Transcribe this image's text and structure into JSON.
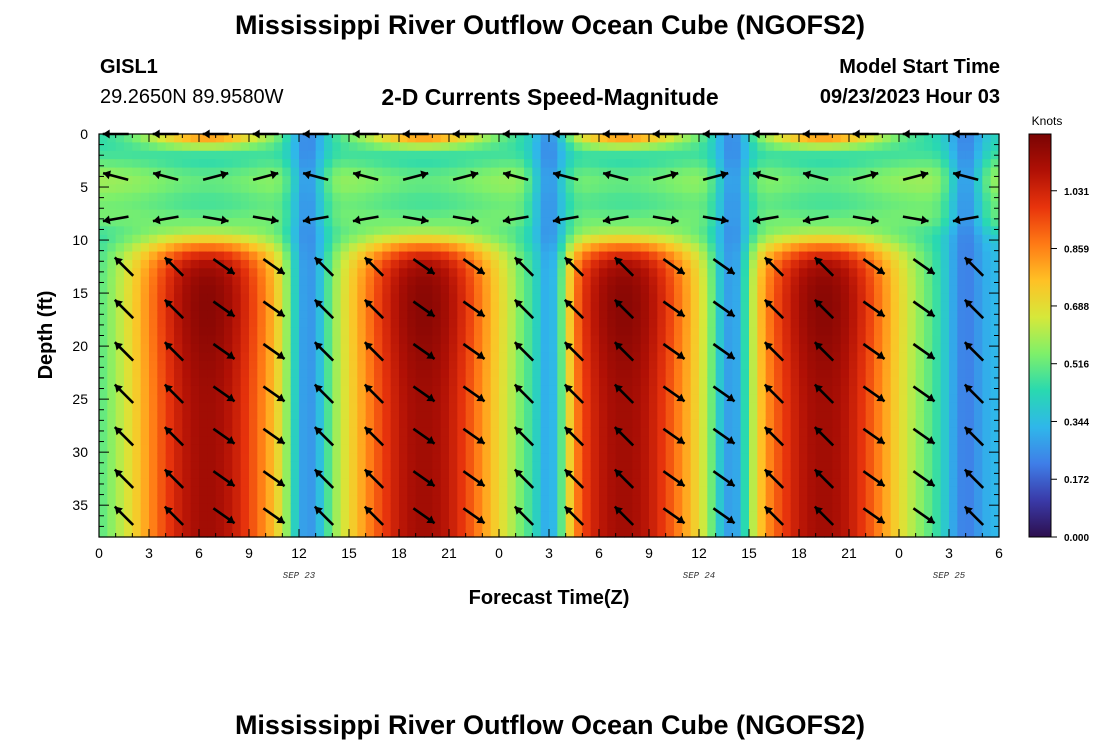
{
  "titles": {
    "main": "Mississippi River Outflow Ocean Cube (NGOFS2)",
    "bottom": "Mississippi River Outflow Ocean Cube (NGOFS2)",
    "station": "GISL1",
    "coords": "29.2650N  89.9580W",
    "subtitle": "2-D Currents Speed-Magnitude",
    "model_start_label": "Model Start Time",
    "model_start_value": "09/23/2023 Hour 03"
  },
  "chart_data": {
    "type": "heatmap",
    "title": "2-D Currents Speed-Magnitude",
    "xlabel": "Forecast Time(Z)",
    "ylabel": "Depth (ft)",
    "x_tick_labels": [
      "0",
      "3",
      "6",
      "9",
      "12",
      "15",
      "18",
      "21",
      "0",
      "3",
      "6",
      "9",
      "12",
      "15",
      "18",
      "21",
      "0",
      "3",
      "6"
    ],
    "day_labels": [
      "SEP 23",
      "SEP 24",
      "SEP 25"
    ],
    "y_ticks": [
      0,
      5,
      10,
      15,
      20,
      25,
      30,
      35
    ],
    "ylim": [
      0,
      38
    ],
    "y_inverted": true,
    "forecast_hours_range": [
      0,
      54
    ],
    "colorbar": {
      "label": "Knots",
      "ticks": [
        "1.031",
        "0.859",
        "0.688",
        "0.516",
        "0.344",
        "0.172",
        "0.000"
      ],
      "range": [
        0,
        1.2
      ],
      "colors": [
        "#2d0f4e",
        "#3a3aa8",
        "#3f7ee8",
        "#2fb7ea",
        "#29d9b0",
        "#7ef06a",
        "#d6e83a",
        "#ffc125",
        "#ff7a15",
        "#e8340c",
        "#b01005",
        "#7a0403"
      ]
    },
    "speed_summary": {
      "peaks_hours": [
        6.5,
        19.5,
        31.5,
        43.5
      ],
      "peak_speed": 1.12,
      "minima_hours": [
        12.5,
        27,
        38,
        52
      ],
      "minima_speed": 0.17,
      "high_speed_depth_range": [
        10,
        38
      ],
      "upper_layer_depth_range": [
        0,
        9
      ]
    }
  }
}
